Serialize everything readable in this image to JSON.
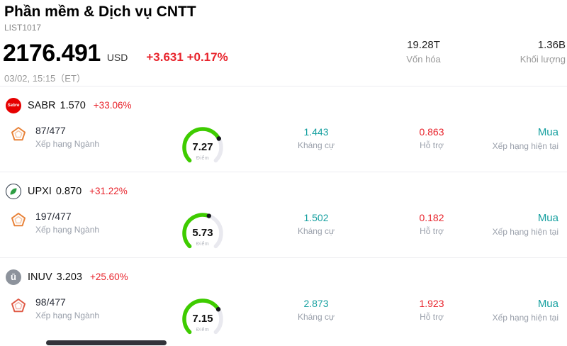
{
  "header": {
    "title": "Phần mềm & Dịch vụ CNTT",
    "list_code": "LIST1017"
  },
  "quote": {
    "price": "2176.491",
    "currency": "USD",
    "change": "+3.631 +0.17%",
    "datetime": "03/02, 15:15（ET）",
    "stats": [
      {
        "value": "19.28T",
        "label": "Vốn hóa"
      },
      {
        "value": "1.36B",
        "label": "Khối lượng"
      }
    ]
  },
  "labels": {
    "rank": "Xếp hạng Ngành",
    "score": "Điểm",
    "resistance": "Kháng cự",
    "support": "Hỗ trợ",
    "rating": "Xếp hạng hiện tại"
  },
  "colors": {
    "change_red": "#e8242c",
    "teal": "#16a0a0",
    "label_gray": "#9aa0ab"
  },
  "stocks": [
    {
      "ticker": "SABR",
      "price": "1.570",
      "change": "+33.06%",
      "logo_text": "Sabre",
      "logo_bg": "#e60000",
      "rank": "87/477",
      "rank_color": "#e8833a",
      "gauge": {
        "value": 7.27,
        "max": 10,
        "display": "7.27",
        "color": "#3ecc00"
      },
      "resistance": "1.443",
      "support": "0.863",
      "rating": "Mua"
    },
    {
      "ticker": "UPXI",
      "price": "0.870",
      "change": "+31.22%",
      "logo_text": "",
      "logo_bg": "#ffffff",
      "rank": "197/477",
      "rank_color": "#e8833a",
      "gauge": {
        "value": 5.73,
        "max": 10,
        "display": "5.73",
        "color": "#ffc400"
      },
      "resistance": "1.502",
      "support": "0.182",
      "rating": "Mua"
    },
    {
      "ticker": "INUV",
      "price": "3.203",
      "change": "+25.60%",
      "logo_text": "ū",
      "logo_bg": "#8d939c",
      "rank": "98/477",
      "rank_color": "#e05a46",
      "gauge": {
        "value": 7.15,
        "max": 10,
        "display": "7.15",
        "color": "#3ecc00"
      },
      "resistance": "2.873",
      "support": "1.923",
      "rating": "Mua"
    }
  ]
}
